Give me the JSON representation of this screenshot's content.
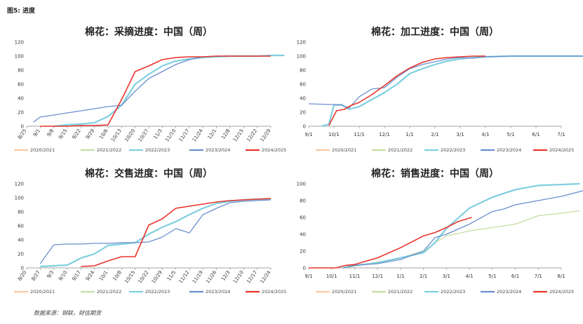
{
  "top_label": "图5: 进度",
  "source": "数据来源：钢联，财信期货",
  "chart_data": [
    {
      "type": "line",
      "title": "棉花：采摘进度：中国（周）",
      "x_ticks": [
        "8/25",
        "9/1",
        "9/8",
        "9/15",
        "9/22",
        "9/29",
        "10/6",
        "10/13",
        "10/20",
        "10/27",
        "11/3",
        "11/10",
        "11/17",
        "11/24",
        "12/1",
        "12/8",
        "12/15",
        "12/22",
        "12/29"
      ],
      "ylim": [
        0,
        120
      ],
      "y_ticks": [
        0,
        20,
        40,
        60,
        80,
        100,
        120
      ],
      "series": [
        {
          "name": "2020/2021",
          "color": "#f9c9a3",
          "x": [],
          "y": []
        },
        {
          "name": "2021/2022",
          "color": "#c5dea2",
          "x": [],
          "y": []
        },
        {
          "name": "2022/2023",
          "color": "#7fcfdf",
          "x": [
            2,
            3,
            4,
            5,
            6,
            7,
            8,
            9,
            10,
            11,
            12,
            13,
            14,
            15,
            16,
            17,
            18,
            19
          ],
          "y": [
            0,
            2,
            3,
            5,
            14,
            30,
            60,
            74,
            86,
            93,
            96,
            98,
            99,
            100,
            100,
            100,
            101,
            101
          ]
        },
        {
          "name": "2023/2024",
          "color": "#6b8fcd",
          "x": [
            0.5,
            1,
            2,
            3,
            4,
            5,
            6,
            7,
            8,
            9,
            10,
            11,
            12,
            13,
            14,
            15,
            16,
            17,
            18
          ],
          "y": [
            6,
            13,
            16,
            19,
            22,
            25,
            28,
            30,
            50,
            68,
            78,
            88,
            95,
            99,
            100,
            100,
            100,
            100,
            100
          ]
        },
        {
          "name": "2024/2025",
          "color": "#e8342d",
          "x": [
            1,
            2,
            3,
            4,
            5,
            6,
            7,
            8,
            9,
            10,
            11,
            12,
            13,
            14,
            15,
            16,
            17,
            18
          ],
          "y": [
            0,
            0,
            0,
            1,
            1,
            2,
            38,
            78,
            86,
            95,
            98,
            99,
            99,
            100,
            100,
            100,
            100,
            100
          ]
        }
      ]
    },
    {
      "type": "line",
      "title": "棉花：加工进度：中国（周）",
      "x_ticks": [
        "9/1",
        "10/1",
        "11/1",
        "12/1",
        "1/1",
        "2/1",
        "3/1",
        "4/1",
        "5/1",
        "6/1",
        "7/1"
      ],
      "ylim": [
        0,
        120
      ],
      "y_ticks": [
        0,
        20,
        40,
        60,
        80,
        100,
        120
      ],
      "series": [
        {
          "name": "2020/2021",
          "color": "#f9c9a3",
          "x": [],
          "y": []
        },
        {
          "name": "2021/2022",
          "color": "#c5dea2",
          "x": [],
          "y": []
        },
        {
          "name": "2022/2023",
          "color": "#7fcfdf",
          "x": [
            0.5,
            0.8,
            1,
            1.3,
            1.6,
            2,
            2.5,
            3,
            3.5,
            4,
            4.5,
            5,
            5.5,
            6,
            6.5,
            7,
            8,
            9,
            10,
            11.5
          ],
          "y": [
            0,
            3,
            30,
            31,
            24,
            28,
            38,
            48,
            60,
            75,
            82,
            88,
            93,
            96,
            98,
            99,
            100,
            100,
            100,
            100
          ]
        },
        {
          "name": "2023/2024",
          "color": "#6b8fcd",
          "x": [
            0,
            0.8,
            1,
            1.3,
            1.6,
            2,
            2.5,
            3,
            3.5,
            4,
            4.5,
            5,
            5.5,
            6,
            6.5,
            7,
            8,
            9,
            10,
            11.5
          ],
          "y": [
            32,
            31,
            31,
            30,
            26,
            42,
            53,
            55,
            70,
            82,
            88,
            92,
            96,
            98,
            97,
            99,
            100,
            100,
            100,
            100
          ]
        },
        {
          "name": "2024/2025",
          "color": "#e8342d",
          "x": [
            0.8,
            1.1,
            1.4,
            1.7,
            2,
            2.5,
            3,
            3.5,
            4,
            4.5,
            5,
            5.5,
            6,
            6.5,
            7
          ],
          "y": [
            1,
            22,
            24,
            30,
            34,
            45,
            58,
            72,
            83,
            91,
            96,
            98,
            99,
            100,
            100
          ]
        }
      ]
    },
    {
      "type": "line",
      "title": "棉花：交售进度：中国（周）",
      "x_ticks": [
        "8/20",
        "8/27",
        "9/3",
        "9/10",
        "9/17",
        "9/24",
        "10/1",
        "10/8",
        "10/15",
        "10/22",
        "10/29",
        "11/5",
        "11/12",
        "11/19",
        "11/26",
        "12/3",
        "12/10",
        "12/17",
        "12/24"
      ],
      "ylim": [
        0,
        120
      ],
      "y_ticks": [
        0,
        20,
        40,
        60,
        80,
        100,
        120
      ],
      "series": [
        {
          "name": "2020/2021",
          "color": "#f9c9a3",
          "x": [],
          "y": []
        },
        {
          "name": "2021/2022",
          "color": "#c5dea2",
          "x": [],
          "y": []
        },
        {
          "name": "2022/2023",
          "color": "#7fcfdf",
          "x": [
            1,
            2,
            3,
            4,
            5,
            6,
            7,
            8,
            9,
            10,
            11,
            12,
            13,
            14,
            15,
            16,
            17,
            18
          ],
          "y": [
            2,
            3,
            4,
            14,
            20,
            32,
            34,
            36,
            48,
            58,
            66,
            76,
            85,
            92,
            95,
            97,
            98,
            98
          ]
        },
        {
          "name": "2023/2024",
          "color": "#6b8fcd",
          "x": [
            1,
            2,
            3,
            4,
            5,
            6,
            7,
            8,
            9,
            10,
            11,
            12,
            13,
            14,
            15,
            16,
            17,
            18
          ],
          "y": [
            6,
            33,
            34,
            34,
            35,
            35,
            36,
            36,
            37,
            44,
            56,
            50,
            76,
            85,
            93,
            95,
            96,
            97
          ]
        },
        {
          "name": "2024/2025",
          "color": "#e8342d",
          "x": [
            4,
            5,
            6,
            7,
            8,
            9,
            10,
            11,
            12,
            13,
            14,
            15,
            16,
            17,
            18
          ],
          "y": [
            2,
            3,
            10,
            16,
            16,
            61,
            70,
            85,
            88,
            91,
            94,
            96,
            97,
            98,
            99
          ]
        }
      ]
    },
    {
      "type": "line",
      "title": "棉花：销售进度：中国（周）",
      "x_ticks": [
        "9/1",
        "10/1",
        "11/1",
        "12/1",
        "1/1",
        "2/1",
        "3/1",
        "4/1",
        "5/1",
        "6/1",
        "7/1",
        "8/1"
      ],
      "ylim": [
        0,
        100
      ],
      "y_ticks": [
        0,
        20,
        40,
        60,
        80,
        100
      ],
      "series": [
        {
          "name": "2020/2021",
          "color": "#f9c9a3",
          "x": [],
          "y": []
        },
        {
          "name": "2021/2022",
          "color": "#c5dea2",
          "x": [
            1.5,
            2,
            3,
            4,
            5,
            5.5,
            6,
            7,
            8,
            9,
            9.5,
            10,
            11,
            11.8
          ],
          "y": [
            0,
            2,
            7,
            12,
            20,
            30,
            38,
            44,
            48,
            52,
            57,
            62,
            65,
            68
          ]
        },
        {
          "name": "2022/2023",
          "color": "#7fcfdf",
          "x": [
            1.5,
            2,
            3,
            4,
            5,
            5.5,
            6,
            7,
            8,
            9,
            10,
            11,
            11.8
          ],
          "y": [
            0,
            3,
            6,
            12,
            18,
            30,
            47,
            71,
            84,
            93,
            98,
            99,
            100
          ]
        },
        {
          "name": "2023/2024",
          "color": "#6b8fcd",
          "x": [
            1.5,
            2,
            3,
            4,
            5,
            5.5,
            6,
            7,
            8,
            8.5,
            9,
            10,
            11,
            12
          ],
          "y": [
            0,
            3,
            5,
            10,
            20,
            36,
            40,
            52,
            67,
            70,
            75,
            80,
            85,
            92
          ]
        },
        {
          "name": "2024/2025",
          "color": "#e8342d",
          "x": [
            0,
            1.2,
            1.6,
            2,
            2.5,
            3,
            4,
            5,
            5.5,
            6,
            6.5,
            7.1
          ],
          "y": [
            0,
            0,
            3,
            4,
            8,
            12,
            24,
            38,
            42,
            48,
            55,
            60
          ]
        }
      ]
    }
  ]
}
